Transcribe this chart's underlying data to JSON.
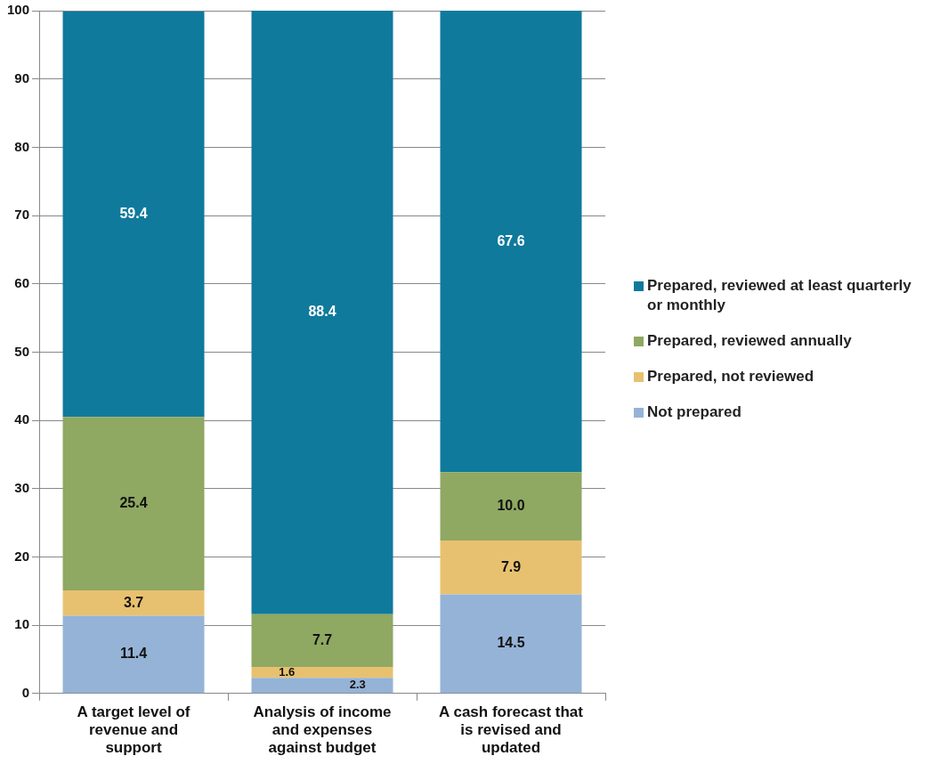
{
  "chart_data": {
    "type": "bar",
    "stacked": true,
    "categories": [
      "A target level of revenue and support",
      "Analysis of income and expenses against budget",
      "A cash forecast that is revised and updated"
    ],
    "series": [
      {
        "name": "Not prepared",
        "color": "#95b3d7",
        "values": [
          11.4,
          2.3,
          14.5
        ],
        "value_labels": [
          "11.4",
          "2.3",
          "14.5"
        ]
      },
      {
        "name": "Prepared, not reviewed",
        "color": "#e8c170",
        "values": [
          3.7,
          1.6,
          7.9
        ],
        "value_labels": [
          "3.7",
          "1.6",
          "7.9"
        ]
      },
      {
        "name": "Prepared, reviewed annually",
        "color": "#8fa862",
        "values": [
          25.4,
          7.7,
          10.0
        ],
        "value_labels": [
          "25.4",
          "7.7",
          "10.0"
        ]
      },
      {
        "name": "Prepared, reviewed at least quarterly or monthly",
        "color": "#0f7a9c",
        "values": [
          59.4,
          88.4,
          67.6
        ],
        "value_labels": [
          "59.4",
          "88.4",
          "67.6"
        ]
      }
    ],
    "ylim": [
      0,
      100
    ],
    "yticks": [
      0,
      10,
      20,
      30,
      40,
      50,
      60,
      70,
      80,
      90,
      100
    ],
    "grid": "y",
    "legend": "right"
  }
}
